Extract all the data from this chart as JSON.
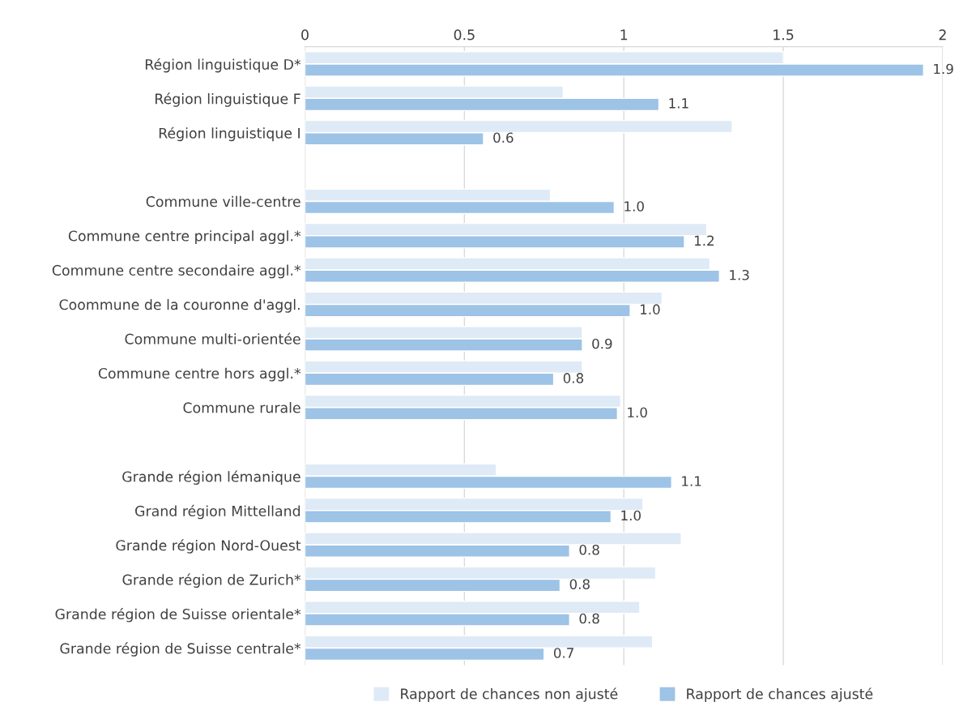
{
  "chart_data": {
    "type": "bar",
    "orientation": "horizontal",
    "categories": [
      "Région linguistique D*",
      "Région linguistique F",
      "Région linguistique I",
      null,
      "Commune ville-centre",
      "Commune centre principal aggl.*",
      "Commune centre secondaire aggl.*",
      "Coommune de la couronne d'aggl.",
      "Commune multi-orientée",
      "Commune centre hors aggl.*",
      "Commune rurale",
      null,
      "Grande région lémanique",
      "Grand région Mittelland",
      "Grande région Nord-Ouest",
      "Grande région de Zurich*",
      "Grande région de Suisse orientale*",
      "Grande région de Suisse centrale*"
    ],
    "series": [
      {
        "name": "Rapport de chances non ajusté",
        "color": "#deeaf6",
        "values": [
          1.5,
          0.81,
          1.34,
          null,
          0.77,
          1.26,
          1.27,
          1.12,
          0.87,
          0.87,
          0.99,
          null,
          0.6,
          1.06,
          1.18,
          1.1,
          1.05,
          1.09
        ]
      },
      {
        "name": "Rapport de chances ajusté",
        "color": "#9dc3e6",
        "values": [
          1.94,
          1.11,
          0.56,
          null,
          0.97,
          1.19,
          1.3,
          1.02,
          0.87,
          0.78,
          0.98,
          null,
          1.15,
          0.96,
          0.83,
          0.8,
          0.83,
          0.75
        ],
        "value_labels": [
          "1.9",
          "1.1",
          "0.6",
          null,
          "1.0",
          "1.2",
          "1.3",
          "1.0",
          "0.9",
          "0.8",
          "1.0",
          null,
          "1.1",
          "1.0",
          "0.8",
          "0.8",
          "0.8",
          "0.7"
        ]
      }
    ],
    "xlim": [
      0,
      2
    ],
    "xticks": [
      0,
      0.5,
      1,
      1.5,
      2
    ],
    "grid": "x",
    "legend": "bottom"
  }
}
